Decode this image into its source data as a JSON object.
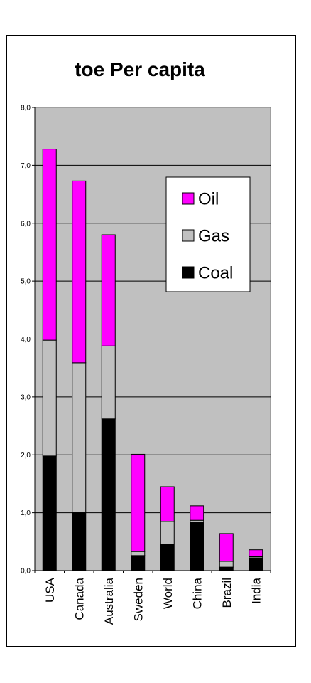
{
  "chart_data": {
    "type": "bar",
    "stacked": true,
    "title": "toe Per capita",
    "categories": [
      "USA",
      "Canada",
      "Australia",
      "Sweden",
      "World",
      "China",
      "Brazil",
      "India"
    ],
    "series": [
      {
        "name": "Coal",
        "color": "#000000",
        "values": [
          1.98,
          1.01,
          2.62,
          0.26,
          0.46,
          0.83,
          0.06,
          0.22
        ]
      },
      {
        "name": "Gas",
        "color": "#c0c0c0",
        "values": [
          2.0,
          2.58,
          1.26,
          0.07,
          0.39,
          0.04,
          0.1,
          0.02
        ]
      },
      {
        "name": "Oil",
        "color": "#ff00ff",
        "values": [
          3.3,
          3.14,
          1.92,
          1.68,
          0.6,
          0.25,
          0.48,
          0.12
        ]
      }
    ],
    "ylim": [
      0,
      8
    ],
    "yticks": [
      "0,0",
      "1,0",
      "2,0",
      "3,0",
      "4,0",
      "5,0",
      "6,0",
      "7,0",
      "8,0"
    ],
    "grid": true,
    "plot_background": "#c0c0c0",
    "legend": {
      "placement": "top-right",
      "order": [
        "Oil",
        "Gas",
        "Coal"
      ]
    },
    "xlabel": "",
    "ylabel": ""
  }
}
